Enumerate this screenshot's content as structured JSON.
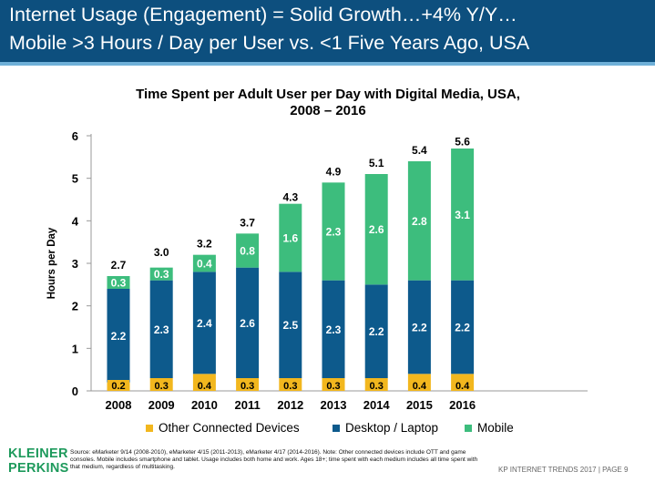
{
  "header": {
    "line1": "Internet Usage (Engagement) = Solid Growth…+4% Y/Y…",
    "line2": "Mobile >3 Hours / Day per User vs. <1 Five Years Ago, USA"
  },
  "colors": {
    "header_bg": "#0d4f7e",
    "other_connected": "#f2b71e",
    "desktop_laptop": "#0d5a8c",
    "mobile": "#3dbd7d"
  },
  "chart_data": {
    "type": "bar",
    "stacked": true,
    "title_line1": "Time Spent per Adult User per Day with Digital Media, USA,",
    "title_line2": "2008 – 2016",
    "ylabel": "Hours per Day",
    "xlabel": "",
    "ylim": [
      0,
      6
    ],
    "yticks": [
      0,
      1,
      2,
      3,
      4,
      5,
      6
    ],
    "grid": false,
    "legend_position": "bottom",
    "categories": [
      "2008",
      "2009",
      "2010",
      "2011",
      "2012",
      "2013",
      "2014",
      "2015",
      "2016"
    ],
    "series": [
      {
        "name": "Other Connected Devices",
        "color": "#f2b71e",
        "values": [
          0.2,
          0.3,
          0.4,
          0.3,
          0.3,
          0.3,
          0.3,
          0.4,
          0.4
        ],
        "labels": [
          "0.2",
          "0.3",
          "0.4",
          "0.3",
          "0.3",
          "0.3",
          "0.3",
          "0.4",
          "0.4"
        ]
      },
      {
        "name": "Desktop / Laptop",
        "color": "#0d5a8c",
        "values": [
          2.2,
          2.3,
          2.4,
          2.6,
          2.5,
          2.3,
          2.2,
          2.2,
          2.2
        ],
        "labels": [
          "2.2",
          "2.3",
          "2.4",
          "2.6",
          "2.5",
          "2.3",
          "2.2",
          "2.2",
          "2.2"
        ]
      },
      {
        "name": "Mobile",
        "color": "#3dbd7d",
        "values": [
          0.3,
          0.3,
          0.4,
          0.8,
          1.6,
          2.3,
          2.6,
          2.8,
          3.1
        ],
        "labels": [
          "0.3",
          "0.3",
          "0.4",
          "0.8",
          "1.6",
          "2.3",
          "2.6",
          "2.8",
          "3.1"
        ]
      }
    ],
    "totals": [
      2.7,
      3.0,
      3.2,
      3.7,
      4.3,
      4.9,
      5.1,
      5.4,
      5.6
    ],
    "total_labels": [
      "2.7",
      "3.0",
      "3.2",
      "3.7",
      "4.3",
      "4.9",
      "5.1",
      "5.4",
      "5.6"
    ]
  },
  "footer": {
    "logo_line1": "KLEINER",
    "logo_line2": "PERKINS",
    "source": "Source: eMarketer 9/14 (2008-2010), eMarketer 4/15 (2011-2013), eMarketer 4/17 (2014-2016). Note: Other connected devices include OTT and game consoles. Mobile includes smartphone and tablet. Usage includes both home and work. Ages 18+; time spent with each medium includes all time spent with that medium, regardless of multitasking.",
    "right": "KP INTERNET TRENDS 2017  |  PAGE 9"
  }
}
